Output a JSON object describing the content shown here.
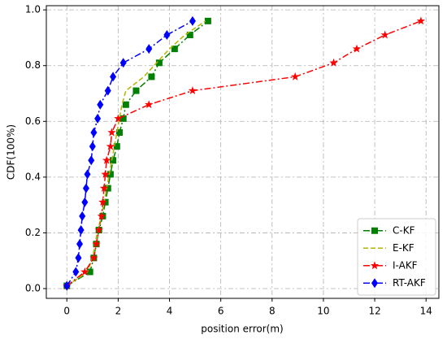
{
  "chart_data": {
    "type": "line",
    "xlabel": "position error(m)",
    "ylabel": "CDF(100%)",
    "xlim": [
      -0.8,
      14.5
    ],
    "ylim": [
      -0.035,
      1.015
    ],
    "xticks": [
      0,
      2,
      4,
      6,
      8,
      10,
      12,
      14
    ],
    "yticks": [
      {
        "value": 0,
        "label": "0.0"
      },
      {
        "value": 0.2,
        "label": "0.2"
      },
      {
        "value": 0.4,
        "label": "0.4"
      },
      {
        "value": 0.6,
        "label": "0.6"
      },
      {
        "value": 0.8,
        "label": "0.8"
      },
      {
        "value": 1,
        "label": "1.0"
      }
    ],
    "grid": true,
    "legend": "lower right",
    "series": [
      {
        "name": "C-KF",
        "color": "#008000",
        "linestyle": "dashdot",
        "marker": "square",
        "x": [
          0,
          0.9,
          1.05,
          1.15,
          1.25,
          1.4,
          1.5,
          1.6,
          1.7,
          1.8,
          1.95,
          2.05,
          2.2,
          2.3,
          2.7,
          3.3,
          3.6,
          4.2,
          4.8,
          5.5
        ],
        "values": [
          0.01,
          0.06,
          0.11,
          0.16,
          0.21,
          0.26,
          0.31,
          0.36,
          0.41,
          0.46,
          0.51,
          0.56,
          0.61,
          0.66,
          0.71,
          0.76,
          0.81,
          0.86,
          0.91,
          0.96
        ]
      },
      {
        "name": "E-KF",
        "color": "#b5b500",
        "linestyle": "dashed",
        "x": [
          0,
          0.8,
          1.0,
          1.1,
          1.2,
          1.35,
          1.45,
          1.55,
          1.65,
          1.75,
          1.85,
          1.95,
          2.05,
          2.15,
          2.3,
          3.0,
          3.5,
          4.0,
          4.6,
          5.4
        ],
        "values": [
          0.01,
          0.06,
          0.11,
          0.16,
          0.21,
          0.26,
          0.31,
          0.36,
          0.41,
          0.46,
          0.51,
          0.56,
          0.61,
          0.66,
          0.71,
          0.76,
          0.81,
          0.86,
          0.91,
          0.96
        ]
      },
      {
        "name": "I-AKF",
        "color": "#ff0000",
        "linestyle": "dashdot",
        "marker": "star",
        "x": [
          0,
          0.7,
          1.05,
          1.15,
          1.25,
          1.35,
          1.4,
          1.45,
          1.5,
          1.55,
          1.7,
          1.75,
          2.0,
          3.2,
          4.9,
          8.9,
          10.4,
          11.3,
          12.4,
          13.8
        ],
        "values": [
          0.01,
          0.06,
          0.11,
          0.16,
          0.21,
          0.26,
          0.31,
          0.36,
          0.41,
          0.46,
          0.51,
          0.56,
          0.61,
          0.66,
          0.71,
          0.76,
          0.81,
          0.86,
          0.91,
          0.96
        ]
      },
      {
        "name": "RT-AKF",
        "color": "#0000ff",
        "linestyle": "dashdot",
        "marker": "diamond",
        "x": [
          0,
          0.35,
          0.45,
          0.5,
          0.55,
          0.6,
          0.7,
          0.75,
          0.8,
          0.95,
          1.0,
          1.05,
          1.2,
          1.3,
          1.6,
          1.8,
          2.2,
          3.2,
          3.9,
          4.9
        ],
        "values": [
          0.01,
          0.06,
          0.11,
          0.16,
          0.21,
          0.26,
          0.31,
          0.36,
          0.41,
          0.46,
          0.51,
          0.56,
          0.61,
          0.66,
          0.71,
          0.76,
          0.81,
          0.86,
          0.91,
          0.96
        ]
      }
    ]
  }
}
